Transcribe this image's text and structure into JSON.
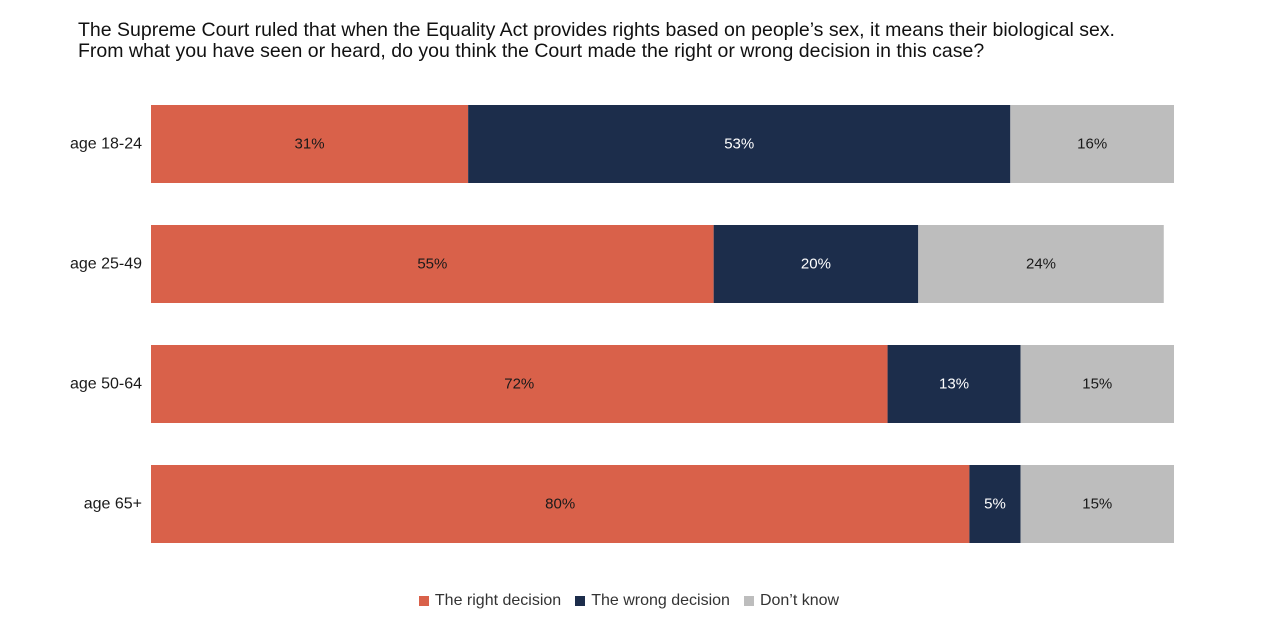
{
  "chart_data": {
    "type": "bar",
    "orientation": "horizontal",
    "stacked": true,
    "title_lines": [
      "The Supreme Court ruled that when the Equality Act provides rights based on people’s sex, it means their biological sex.",
      "From what you have seen or heard, do you think the Court made the right or wrong decision in this case?"
    ],
    "categories": [
      "age 18-24",
      "age 25-49",
      "age 50-64",
      "age 65+"
    ],
    "series": [
      {
        "name": "The right decision",
        "color": "#d9614a",
        "label_color": "#1a1a1a",
        "values": [
          31,
          55,
          72,
          80
        ]
      },
      {
        "name": "The wrong decision",
        "color": "#1c2d4b",
        "label_color": "#ffffff",
        "values": [
          53,
          20,
          13,
          5
        ]
      },
      {
        "name": "Don’t know",
        "color": "#bdbdbd",
        "label_color": "#1a1a1a",
        "values": [
          16,
          24,
          15,
          15
        ]
      }
    ],
    "value_suffix": "%",
    "xlim": [
      0,
      100
    ],
    "grid": false,
    "legend_position": "bottom"
  }
}
